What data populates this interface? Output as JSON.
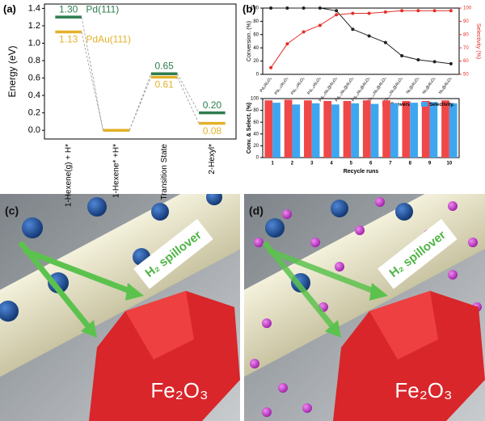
{
  "panels": [
    {
      "label": "(a)"
    },
    {
      "label": "(b)"
    },
    {
      "label": "(c)",
      "spillover": "H₂ spillover",
      "oxide": "Fe₂O₃"
    },
    {
      "label": "(d)",
      "spillover": "H₂ spillover",
      "oxide": "Fe₂O₃"
    }
  ],
  "chart_data": [
    {
      "type": "level",
      "y_label": "Energy (eV)",
      "categories": [
        "1-Hexene(g) + H*",
        "1-Hexene* +H*",
        "Transition State",
        "2-Hexyl*"
      ],
      "series": [
        {
          "name": "Pd(111)",
          "color": "#2e7d4f",
          "values": [
            1.3,
            0.0,
            0.65,
            0.2
          ],
          "value_labels": [
            "1.30",
            null,
            "0.65",
            "0.20"
          ]
        },
        {
          "name": "PdAu(111)",
          "color": "#e3b12b",
          "values": [
            1.13,
            0.0,
            0.61,
            0.08
          ],
          "value_labels": [
            "1.13",
            null,
            "0.61",
            "0.08"
          ]
        }
      ],
      "ylim": [
        -0.1,
        1.45
      ],
      "yticks": [
        {
          "value": 0,
          "label": "0.0"
        },
        0.2,
        0.4,
        0.6,
        0.8,
        {
          "value": 1,
          "label": "1.0"
        },
        1.2,
        1.4
      ]
    },
    {
      "type": "line",
      "y_label": "Conversion. (%)",
      "y2_label": "Selectivity (%)",
      "categories": [
        "Pd₁/Al₂O₃",
        "Pd₀.₅/Al₂O₃",
        "Pd₀.₂/Al₂O₃",
        "Pd₀.₁/Al₂O₃",
        "Pd₀.₅Ni₅@Al₂O₃",
        "Pd₀.₂Ni₅@Al₂O₃",
        "Pd₀.₁Ni₅@Al₂O₃",
        "Pd₀.₀₅Ni₅@Al₂O₃",
        "Pd₀.₀₂Ni₅@Al₂O₃",
        "Ni₁@Al₂O₃",
        "Ni₂@Al₂O₃",
        "Ni₅@Al₂O₃"
      ],
      "series": [
        {
          "name": "Conversion",
          "color": "#222222",
          "values": [
            100,
            100,
            100,
            100,
            96,
            68,
            58,
            48,
            28,
            22,
            19,
            16
          ]
        },
        {
          "name": "Selectivity",
          "color": "#e0302a",
          "axis": "y2",
          "values": [
            55,
            73,
            82,
            87,
            95,
            96,
            96,
            97,
            98,
            98,
            98,
            98
          ]
        }
      ],
      "ylim": [
        0,
        100
      ],
      "yticks": [
        0,
        20,
        40,
        60,
        80,
        100
      ],
      "y2lim": [
        50,
        100
      ],
      "y2ticks": [
        50,
        60,
        70,
        80,
        90,
        100
      ]
    },
    {
      "type": "bar",
      "y_label": "Conv. & Select. (%)",
      "x_label": "Recycle runs",
      "categories": [
        "1",
        "2",
        "3",
        "4",
        "5",
        "6",
        "7",
        "8",
        "9",
        "10"
      ],
      "series": [
        {
          "name": "Conversion.",
          "color": "#f04848",
          "values": [
            97,
            98,
            97,
            96,
            96,
            97,
            97,
            96,
            96,
            97
          ]
        },
        {
          "name": "Selectivity.",
          "color": "#3ea6f0",
          "values": [
            93,
            90,
            92,
            90,
            92,
            91,
            92,
            93,
            94,
            92
          ]
        }
      ],
      "ylim": [
        0,
        100
      ],
      "yticks": [
        0,
        20,
        40,
        60,
        80,
        100
      ],
      "legend": "upper right"
    }
  ]
}
